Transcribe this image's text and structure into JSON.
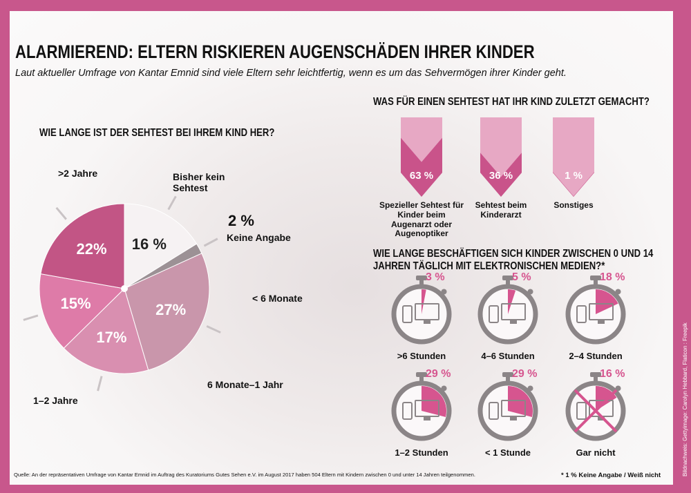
{
  "header": {
    "title": "ALARMIEREND: ELTERN RISKIEREN AUGENSCHÄDEN IHRER KINDER",
    "subtitle": "Laut aktueller Umfrage von Kantar Emnid sind viele Eltern sehr leichtfertig, wenn es um das Sehvermögen ihrer Kinder geht."
  },
  "chart_data": [
    {
      "type": "pie",
      "title": "WIE LANGE IST DER SEHTEST BEI IHREM KIND HER?",
      "categories": [
        "Bisher kein Sehtest",
        "Keine Angabe",
        "< 6 Monate",
        "6 Monate–1 Jahr",
        "1–2 Jahre",
        ">2 Jahre"
      ],
      "values": [
        16,
        2,
        27,
        17,
        15,
        22
      ],
      "value_labels": [
        "16 %",
        "2 %",
        "27%",
        "17%",
        "15%",
        "22%"
      ],
      "colors": [
        "#f6f2f3",
        "#9c9195",
        "#c996ab",
        "#d98fb0",
        "#de7ba8",
        "#c25585"
      ]
    },
    {
      "type": "pennant",
      "title": "WAS FÜR EINEN SEHTEST HAT IHR KIND ZULETZT GEMACHT?",
      "categories": [
        "Spezieller Sehtest für Kinder beim Augenarzt oder Augenoptiker",
        "Sehtest beim Kinderarzt",
        "Sonstiges"
      ],
      "values": [
        63,
        36,
        1
      ],
      "value_labels": [
        "63 %",
        "36 %",
        "1 %"
      ],
      "color": "#c9538a",
      "track_color": "#e7a8c4"
    },
    {
      "type": "stopwatch",
      "title": "WIE LANGE BESCHÄFTIGEN SICH KINDER ZWISCHEN 0 UND 14 JAHREN TÄGLICH MIT ELEKTRONISCHEN MEDIEN?*",
      "categories": [
        ">6 Stunden",
        "4–6 Stunden",
        "2–4 Stunden",
        "1–2 Stunden",
        "< 1 Stunde",
        "Gar nicht"
      ],
      "values": [
        3,
        5,
        18,
        29,
        29,
        16
      ],
      "value_labels": [
        "3 %",
        "5 %",
        "18 %",
        "29 %",
        "29 %",
        "16 %"
      ],
      "crossed": [
        false,
        false,
        false,
        false,
        false,
        true
      ],
      "color": "#d6558f"
    }
  ],
  "footer": {
    "source": "Quelle: An der repräsentativen Umfrage von Kantar Emnid im Auftrag des Kuratoriums Gutes Sehen e.V. im August 2017 haben 504 Eltern mit Kindern zwischen 0 und unter 14 Jahren teilgenommen.",
    "note": "* 1 % Keine Angabe / Weiß nicht",
    "credit": "Bildnachweis: Gettyimage: Carolyn Hebbard, Flaticon : Freepik"
  }
}
